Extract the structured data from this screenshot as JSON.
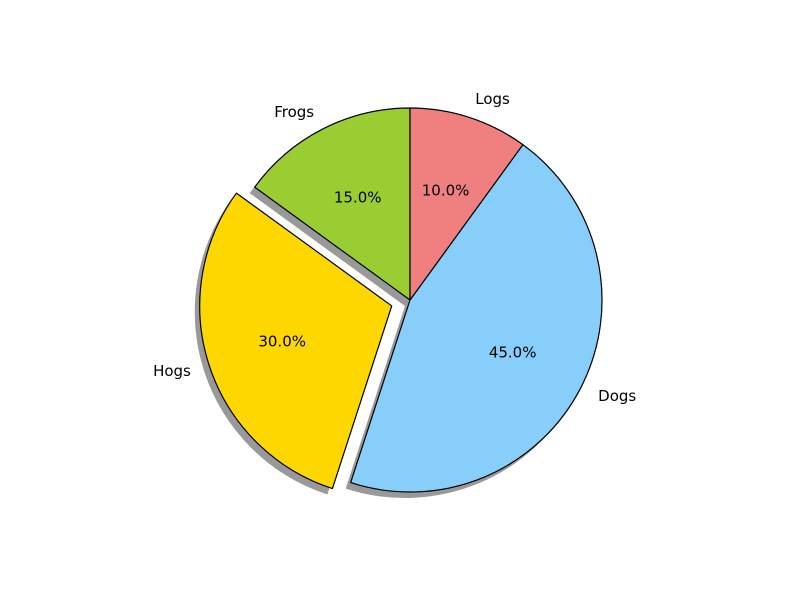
{
  "chart_data": {
    "type": "pie",
    "title": "",
    "slices": [
      {
        "label": "Frogs",
        "value": 15,
        "pct_label": "15.0%",
        "color": "#9acd32",
        "explode": false
      },
      {
        "label": "Hogs",
        "value": 30,
        "pct_label": "30.0%",
        "color": "#ffd700",
        "explode": true
      },
      {
        "label": "Dogs",
        "value": 45,
        "pct_label": "45.0%",
        "color": "#87cefa",
        "explode": false
      },
      {
        "label": "Logs",
        "value": 10,
        "pct_label": "10.0%",
        "color": "#f08080",
        "explode": false
      }
    ],
    "start_angle_deg": 90,
    "direction": "counterclockwise",
    "shadow": true,
    "edge_color": "#000000"
  }
}
